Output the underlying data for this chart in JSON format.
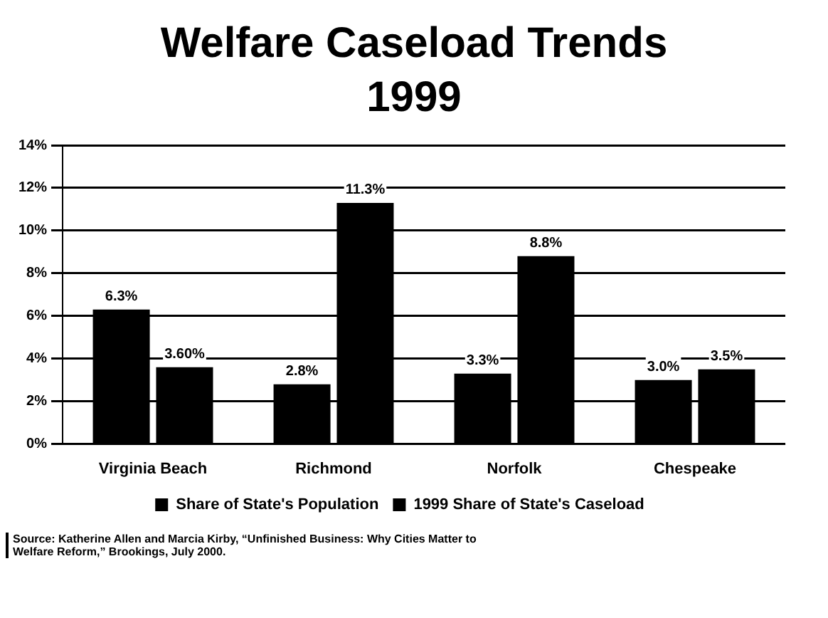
{
  "chart_data": {
    "type": "bar",
    "title": "Welfare Caseload Trends 1999",
    "categories": [
      "Virginia Beach",
      "Richmond",
      "Norfolk",
      "Chespeake"
    ],
    "series": [
      {
        "name": "Share of State's Population",
        "color": "#000000",
        "values": [
          6.3,
          2.8,
          3.3,
          3.0
        ],
        "value_labels": [
          "6.3%",
          "2.8%",
          "3.3%",
          "3.0%"
        ]
      },
      {
        "name": "1999 Share of State's Caseload",
        "color": "#000000",
        "values": [
          3.6,
          11.3,
          8.8,
          3.5
        ],
        "value_labels": [
          "3.60%",
          "11.3%",
          "8.8%",
          "3.5%"
        ]
      }
    ],
    "ylim": [
      0,
      14
    ],
    "yticks": [
      {
        "value": 0,
        "label": "0%"
      },
      {
        "value": 2,
        "label": "2%"
      },
      {
        "value": 4,
        "label": "4%"
      },
      {
        "value": 6,
        "label": "6%"
      },
      {
        "value": 8,
        "label": "8%"
      },
      {
        "value": 10,
        "label": "10%"
      },
      {
        "value": 12,
        "label": "12%"
      },
      {
        "value": 14,
        "label": "14%"
      }
    ],
    "grid": "y",
    "legend": "bottom",
    "annotations": [
      "Source: Katherine Allen and Marcia Kirby, “Unfinished Business: Why Cities Matter to Welfare Reform,” Brookings, July 2000."
    ]
  }
}
